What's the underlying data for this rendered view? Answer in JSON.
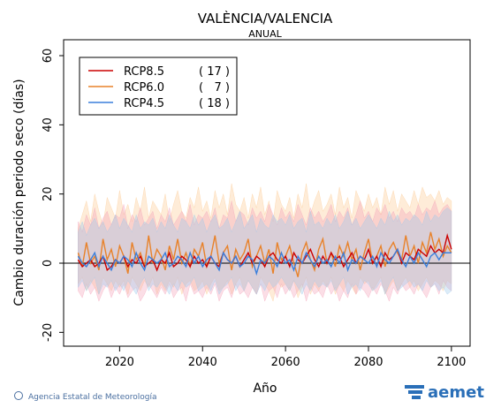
{
  "chart_data": {
    "type": "line",
    "title": "VALÈNCIA/VALENCIA",
    "subtitle": "ANUAL",
    "x_label": "Año",
    "y_label": "Cambio duración periodo seco (días)",
    "footer": "Agencia Estatal de Meteorología",
    "logo": "aemet",
    "xlim": [
      2006.5,
      2104.5
    ],
    "ylim": [
      -24,
      64.6
    ],
    "xticks": [
      2020,
      2040,
      2060,
      2080,
      2100
    ],
    "yticks": [
      -20,
      0,
      20,
      40,
      60
    ],
    "x": [
      2010,
      2011,
      2012,
      2013,
      2014,
      2015,
      2016,
      2017,
      2018,
      2019,
      2020,
      2021,
      2022,
      2023,
      2024,
      2025,
      2026,
      2027,
      2028,
      2029,
      2030,
      2031,
      2032,
      2033,
      2034,
      2035,
      2036,
      2037,
      2038,
      2039,
      2040,
      2041,
      2042,
      2043,
      2044,
      2045,
      2046,
      2047,
      2048,
      2049,
      2050,
      2051,
      2052,
      2053,
      2054,
      2055,
      2056,
      2057,
      2058,
      2059,
      2060,
      2061,
      2062,
      2063,
      2064,
      2065,
      2066,
      2067,
      2068,
      2069,
      2070,
      2071,
      2072,
      2073,
      2074,
      2075,
      2076,
      2077,
      2078,
      2079,
      2080,
      2081,
      2082,
      2083,
      2084,
      2085,
      2086,
      2087,
      2088,
      2089,
      2090,
      2091,
      2092,
      2093,
      2094,
      2095,
      2096,
      2097,
      2098,
      2099,
      2100
    ],
    "series": [
      {
        "name": "RCP8.5",
        "models": {
          "value": 17,
          "label": "( 17 )"
        },
        "color": "#cc0000",
        "band_color": "#f4a0b8",
        "values": [
          1,
          -1,
          0,
          1,
          -1,
          0,
          2,
          -2,
          -1,
          1,
          0,
          2,
          -1,
          1,
          0,
          2,
          -1,
          0,
          1,
          -2,
          1,
          0,
          3,
          -1,
          0,
          2,
          1,
          -1,
          2,
          0,
          1,
          -1,
          2,
          0,
          -1,
          3,
          1,
          0,
          2,
          -1,
          1,
          3,
          0,
          2,
          1,
          -1,
          2,
          3,
          1,
          0,
          2,
          -1,
          3,
          1,
          0,
          2,
          4,
          1,
          -1,
          2,
          0,
          3,
          1,
          2,
          -1,
          1,
          3,
          0,
          2,
          1,
          4,
          0,
          2,
          -1,
          3,
          1,
          2,
          4,
          0,
          3,
          2,
          1,
          4,
          3,
          2,
          5,
          3,
          4,
          3,
          8,
          4
        ],
        "upper": [
          12,
          9,
          14,
          11,
          16,
          10,
          13,
          15,
          11,
          14,
          13,
          17,
          10,
          14,
          12,
          16,
          11,
          13,
          15,
          10,
          14,
          12,
          16,
          11,
          13,
          15,
          12,
          17,
          11,
          14,
          13,
          15,
          12,
          16,
          10,
          14,
          13,
          18,
          12,
          15,
          14,
          11,
          16,
          13,
          15,
          12,
          17,
          14,
          11,
          16,
          13,
          15,
          12,
          17,
          14,
          11,
          16,
          13,
          15,
          12,
          14,
          17,
          12,
          15,
          13,
          16,
          11,
          14,
          18,
          13,
          15,
          12,
          16,
          14,
          17,
          13,
          15,
          12,
          16,
          14,
          15,
          13,
          17,
          14,
          16,
          15,
          18,
          14,
          16,
          17,
          15
        ],
        "lower": [
          -8,
          -10,
          -6,
          -9,
          -7,
          -11,
          -8,
          -6,
          -10,
          -7,
          -9,
          -6,
          -10,
          -8,
          -7,
          -11,
          -9,
          -6,
          -8,
          -10,
          -7,
          -9,
          -6,
          -10,
          -8,
          -7,
          -11,
          -6,
          -9,
          -8,
          -10,
          -7,
          -9,
          -6,
          -11,
          -8,
          -7,
          -10,
          -6,
          -9,
          -8,
          -10,
          -7,
          -9,
          -6,
          -11,
          -8,
          -7,
          -10,
          -6,
          -9,
          -7,
          -10,
          -8,
          -6,
          -11,
          -7,
          -9,
          -8,
          -10,
          -6,
          -9,
          -7,
          -11,
          -8,
          -10,
          -6,
          -9,
          -7,
          -8,
          -10,
          -7,
          -9,
          -6,
          -8,
          -11,
          -7,
          -9,
          -6,
          -8,
          -7,
          -9,
          -6,
          -8,
          -10,
          -7,
          -6,
          -9,
          -5,
          -7,
          -8
        ]
      },
      {
        "name": "RCP6.0",
        "models": {
          "value": 7,
          "label": "(   7 )"
        },
        "color": "#e8822a",
        "band_color": "#fbc890",
        "values": [
          3,
          -1,
          6,
          0,
          2,
          -2,
          7,
          1,
          4,
          -1,
          5,
          2,
          -3,
          6,
          1,
          3,
          -1,
          8,
          0,
          4,
          2,
          -2,
          5,
          1,
          7,
          0,
          3,
          -1,
          4,
          2,
          6,
          -1,
          2,
          8,
          0,
          3,
          5,
          -2,
          4,
          1,
          3,
          7,
          -1,
          2,
          5,
          0,
          4,
          -3,
          6,
          1,
          2,
          5,
          0,
          -4,
          3,
          6,
          1,
          -2,
          4,
          7,
          0,
          3,
          -1,
          5,
          2,
          6,
          1,
          4,
          -2,
          3,
          7,
          0,
          2,
          5,
          -1,
          4,
          6,
          3,
          1,
          8,
          2,
          5,
          0,
          6,
          3,
          9,
          4,
          7,
          2,
          5,
          3
        ],
        "upper": [
          10,
          14,
          18,
          12,
          20,
          15,
          11,
          19,
          16,
          13,
          21,
          14,
          17,
          12,
          19,
          15,
          22,
          13,
          18,
          16,
          14,
          20,
          12,
          17,
          21,
          15,
          13,
          19,
          16,
          22,
          15,
          18,
          13,
          21,
          16,
          20,
          14,
          23,
          17,
          15,
          19,
          13,
          20,
          16,
          22,
          14,
          18,
          12,
          21,
          17,
          15,
          19,
          13,
          20,
          16,
          23,
          14,
          18,
          21,
          15,
          17,
          20,
          14,
          22,
          16,
          19,
          13,
          21,
          18,
          15,
          20,
          16,
          19,
          14,
          22,
          17,
          21,
          15,
          20,
          18,
          16,
          21,
          17,
          22,
          19,
          20,
          18,
          21,
          17,
          19,
          18
        ],
        "lower": [
          -6,
          -4,
          -8,
          -5,
          -7,
          -9,
          -4,
          -6,
          -8,
          -5,
          -7,
          -5,
          -9,
          -4,
          -6,
          -8,
          -5,
          -7,
          -4,
          -9,
          -6,
          -8,
          -5,
          -7,
          -4,
          -9,
          -6,
          -5,
          -8,
          -7,
          -5,
          -9,
          -6,
          -4,
          -8,
          -7,
          -5,
          -9,
          -6,
          -4,
          -8,
          -5,
          -7,
          -9,
          -4,
          -6,
          -8,
          -11,
          -5,
          -7,
          -6,
          -8,
          -5,
          -10,
          -7,
          -4,
          -9,
          -6,
          -8,
          -5,
          -7,
          -4,
          -9,
          -6,
          -8,
          -5,
          -7,
          -9,
          -4,
          -6,
          -5,
          -8,
          -6,
          -4,
          -9,
          -7,
          -5,
          -8,
          -6,
          -4,
          -7,
          -5,
          -8,
          -6,
          -4,
          -7,
          -5,
          -6,
          -8,
          -5,
          -6
        ]
      },
      {
        "name": "RCP4.5",
        "models": {
          "value": 18,
          "label": "( 18 )"
        },
        "color": "#3a7fdc",
        "band_color": "#9cc8ec",
        "values": [
          2,
          0,
          -1,
          1,
          3,
          -1,
          2,
          0,
          -2,
          1,
          0,
          2,
          1,
          -1,
          3,
          0,
          -2,
          2,
          1,
          0,
          1,
          3,
          -1,
          0,
          2,
          1,
          -1,
          3,
          0,
          2,
          -1,
          1,
          2,
          0,
          -2,
          3,
          1,
          0,
          2,
          -1,
          0,
          2,
          1,
          -3,
          1,
          0,
          2,
          1,
          -1,
          3,
          0,
          1,
          -2,
          2,
          0,
          3,
          1,
          -1,
          2,
          0,
          1,
          -1,
          2,
          0,
          3,
          -2,
          1,
          0,
          2,
          1,
          0,
          2,
          -1,
          3,
          1,
          0,
          2,
          4,
          1,
          -1,
          2,
          0,
          3,
          1,
          -1,
          2,
          3,
          1,
          3,
          3,
          3
        ],
        "upper": [
          9,
          12,
          8,
          11,
          13,
          10,
          12,
          9,
          11,
          14,
          10,
          13,
          11,
          9,
          14,
          10,
          12,
          11,
          13,
          9,
          12,
          10,
          14,
          11,
          9,
          13,
          12,
          10,
          14,
          11,
          13,
          9,
          12,
          14,
          10,
          11,
          13,
          9,
          12,
          15,
          10,
          12,
          14,
          9,
          13,
          11,
          10,
          14,
          12,
          13,
          11,
          14,
          10,
          12,
          13,
          9,
          15,
          11,
          12,
          10,
          13,
          11,
          14,
          10,
          12,
          15,
          11,
          13,
          10,
          12,
          14,
          12,
          10,
          13,
          11,
          15,
          12,
          14,
          11,
          13,
          12,
          14,
          13,
          11,
          15,
          12,
          14,
          13,
          15,
          16,
          15
        ],
        "lower": [
          -7,
          -5,
          -8,
          -6,
          -4,
          -9,
          -6,
          -7,
          -5,
          -8,
          -6,
          -8,
          -5,
          -7,
          -9,
          -6,
          -4,
          -8,
          -6,
          -7,
          -5,
          -7,
          -9,
          -6,
          -8,
          -5,
          -7,
          -6,
          -4,
          -8,
          -7,
          -6,
          -8,
          -5,
          -9,
          -7,
          -6,
          -4,
          -8,
          -6,
          -8,
          -5,
          -7,
          -9,
          -6,
          -8,
          -5,
          -7,
          -6,
          -4,
          -6,
          -8,
          -5,
          -7,
          -9,
          -6,
          -8,
          -5,
          -7,
          -6,
          -7,
          -5,
          -8,
          -6,
          -4,
          -9,
          -7,
          -6,
          -8,
          -5,
          -6,
          -8,
          -7,
          -5,
          -9,
          -6,
          -4,
          -8,
          -7,
          -6,
          -5,
          -7,
          -6,
          -8,
          -5,
          -7,
          -6,
          -8,
          -7,
          -9,
          -8
        ]
      }
    ]
  }
}
